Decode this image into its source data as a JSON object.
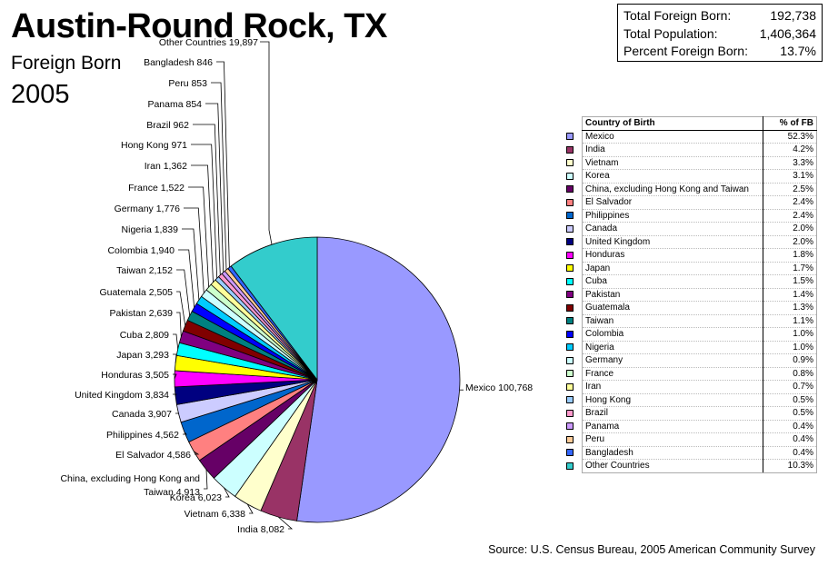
{
  "header": {
    "title": "Austin-Round Rock, TX",
    "subtitle": "Foreign Born",
    "year": "2005"
  },
  "summary": {
    "total_foreign_born_label": "Total Foreign Born:",
    "total_foreign_born_value": "192,738",
    "total_population_label": "Total Population:",
    "total_population_value": "1,406,364",
    "percent_foreign_born_label": "Percent Foreign Born:",
    "percent_foreign_born_value": "13.7%"
  },
  "table": {
    "header_country": "Country of Birth",
    "header_pct": "% of FB"
  },
  "source": "Source: U.S. Census Bureau, 2005 American Community Survey",
  "chart_data": {
    "type": "pie",
    "title": "Austin-Round Rock, TX",
    "slices": [
      {
        "label": "Mexico",
        "pie_label": "Mexico 100,768",
        "value": 100768,
        "pct": "52.3%",
        "color": "#9999ff"
      },
      {
        "label": "India",
        "pie_label": "India 8,082",
        "value": 8082,
        "pct": "4.2%",
        "color": "#993366"
      },
      {
        "label": "Vietnam",
        "pie_label": "Vietnam 6,338",
        "value": 6338,
        "pct": "3.3%",
        "color": "#ffffcc"
      },
      {
        "label": "Korea",
        "pie_label": "Korea 6,023",
        "value": 6023,
        "pct": "3.1%",
        "color": "#ccffff"
      },
      {
        "label": "China, excluding Hong Kong and Taiwan",
        "pie_label": [
          "China, excluding Hong Kong and",
          "Taiwan 4,913"
        ],
        "value": 4913,
        "pct": "2.5%",
        "color": "#660066"
      },
      {
        "label": "El Salvador",
        "pie_label": "El Salvador 4,586",
        "value": 4586,
        "pct": "2.4%",
        "color": "#ff8080"
      },
      {
        "label": "Philippines",
        "pie_label": "Philippines 4,562",
        "value": 4562,
        "pct": "2.4%",
        "color": "#0066cc"
      },
      {
        "label": "Canada",
        "pie_label": "Canada 3,907",
        "value": 3907,
        "pct": "2.0%",
        "color": "#ccccff"
      },
      {
        "label": "United Kingdom",
        "pie_label": "United Kingdom 3,834",
        "value": 3834,
        "pct": "2.0%",
        "color": "#000080"
      },
      {
        "label": "Honduras",
        "pie_label": "Honduras 3,505",
        "value": 3505,
        "pct": "1.8%",
        "color": "#ff00ff"
      },
      {
        "label": "Japan",
        "pie_label": "Japan 3,293",
        "value": 3293,
        "pct": "1.7%",
        "color": "#ffff00"
      },
      {
        "label": "Cuba",
        "pie_label": "Cuba 2,809",
        "value": 2809,
        "pct": "1.5%",
        "color": "#00ffff"
      },
      {
        "label": "Pakistan",
        "pie_label": "Pakistan 2,639",
        "value": 2639,
        "pct": "1.4%",
        "color": "#800080"
      },
      {
        "label": "Guatemala",
        "pie_label": "Guatemala 2,505",
        "value": 2505,
        "pct": "1.3%",
        "color": "#800000"
      },
      {
        "label": "Taiwan",
        "pie_label": "Taiwan 2,152",
        "value": 2152,
        "pct": "1.1%",
        "color": "#008080"
      },
      {
        "label": "Colombia",
        "pie_label": "Colombia 1,940",
        "value": 1940,
        "pct": "1.0%",
        "color": "#0000ff"
      },
      {
        "label": "Nigeria",
        "pie_label": "Nigeria 1,839",
        "value": 1839,
        "pct": "1.0%",
        "color": "#00ccff"
      },
      {
        "label": "Germany",
        "pie_label": "Germany 1,776",
        "value": 1776,
        "pct": "0.9%",
        "color": "#ccffff"
      },
      {
        "label": "France",
        "pie_label": "France 1,522",
        "value": 1522,
        "pct": "0.8%",
        "color": "#ccffcc"
      },
      {
        "label": "Iran",
        "pie_label": "Iran 1,362",
        "value": 1362,
        "pct": "0.7%",
        "color": "#ffff99"
      },
      {
        "label": "Hong Kong",
        "pie_label": "Hong Kong 971",
        "value": 971,
        "pct": "0.5%",
        "color": "#99ccff"
      },
      {
        "label": "Brazil",
        "pie_label": "Brazil 962",
        "value": 962,
        "pct": "0.5%",
        "color": "#ff99cc"
      },
      {
        "label": "Panama",
        "pie_label": "Panama 854",
        "value": 854,
        "pct": "0.4%",
        "color": "#cc99ff"
      },
      {
        "label": "Peru",
        "pie_label": "Peru 853",
        "value": 853,
        "pct": "0.4%",
        "color": "#ffcc99"
      },
      {
        "label": "Bangladesh",
        "pie_label": "Bangladesh 846",
        "value": 846,
        "pct": "0.4%",
        "color": "#3366ff"
      },
      {
        "label": "Other Countries",
        "pie_label": "Other Countries 19,897",
        "value": 19897,
        "pct": "10.3%",
        "color": "#33cccc"
      }
    ]
  }
}
